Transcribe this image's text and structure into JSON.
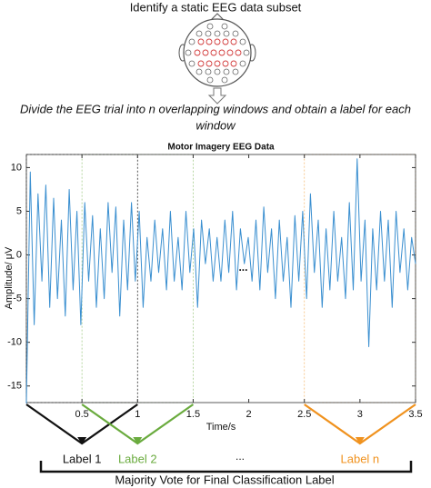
{
  "header": {
    "step1": "Identify a static EEG data subset",
    "step2": "Divide the EEG trial into n overlapping windows and obtain a label for each",
    "step2_cont": "window"
  },
  "chart_data": {
    "type": "line",
    "title": "Motor Imagery EEG Data",
    "xlabel": "Time/s",
    "ylabel": "Amplitude/ μV",
    "xlim": [
      0,
      3.5
    ],
    "ylim": [
      -16.9,
      11.5
    ],
    "xticks": [
      0.5,
      1,
      1.5,
      2,
      2.5,
      3,
      3.5
    ],
    "yticks": [
      -15,
      -10,
      -5,
      0,
      5,
      10
    ],
    "series": [
      {
        "color": "#3a8fd0",
        "x": [
          0,
          0.035,
          0.07,
          0.105,
          0.14,
          0.175,
          0.21,
          0.245,
          0.28,
          0.315,
          0.35,
          0.385,
          0.42,
          0.455,
          0.49,
          0.525,
          0.56,
          0.595,
          0.63,
          0.665,
          0.7,
          0.735,
          0.77,
          0.805,
          0.84,
          0.875,
          0.91,
          0.945,
          0.98,
          1.015,
          1.05,
          1.085,
          1.12,
          1.155,
          1.19,
          1.225,
          1.26,
          1.295,
          1.33,
          1.365,
          1.4,
          1.435,
          1.47,
          1.505,
          1.54,
          1.575,
          1.61,
          1.645,
          1.68,
          1.715,
          1.75,
          1.785,
          1.82,
          1.855,
          1.89,
          1.925,
          1.96,
          1.995,
          2.03,
          2.065,
          2.1,
          2.135,
          2.17,
          2.205,
          2.24,
          2.275,
          2.31,
          2.345,
          2.38,
          2.415,
          2.45,
          2.485,
          2.52,
          2.555,
          2.59,
          2.625,
          2.66,
          2.695,
          2.73,
          2.765,
          2.8,
          2.835,
          2.87,
          2.905,
          2.94,
          2.975,
          3.01,
          3.045,
          3.08,
          3.115,
          3.15,
          3.185,
          3.22,
          3.255,
          3.29,
          3.325,
          3.36,
          3.395,
          3.43,
          3.465,
          3.5
        ],
        "values": [
          -17,
          9.5,
          -8,
          7,
          -3,
          8,
          -6,
          6.5,
          -5,
          4,
          -7,
          7.5,
          -4,
          5,
          -8,
          6,
          -3,
          4.5,
          -6,
          3,
          -5,
          6,
          -2,
          5.5,
          -7,
          4,
          -4,
          6,
          -3,
          5,
          -6,
          2,
          -3,
          4,
          -2,
          3,
          -4,
          5,
          -3,
          2,
          -4,
          5,
          -2,
          3,
          -6,
          4,
          -1,
          3,
          -3,
          2,
          -3,
          4,
          -2,
          5,
          -4,
          3,
          -1,
          2,
          -3,
          4,
          -4,
          5.5,
          -2,
          3,
          -5,
          4,
          -3,
          2,
          -6,
          4.5,
          -3,
          5,
          -5,
          7,
          -2,
          4,
          -6,
          3,
          -4,
          5,
          -3,
          2,
          -5,
          6,
          -4,
          11,
          -3,
          4,
          -10.5,
          3,
          -4,
          5,
          -3,
          4,
          -6,
          5,
          -2,
          3,
          -4,
          2,
          -1
        ]
      }
    ],
    "annotations": [
      {
        "text": "...",
        "x": 1.95,
        "y": -1.5
      }
    ],
    "windows": [
      {
        "start": 0,
        "end": 1,
        "label": "Label 1",
        "color": "#111111"
      },
      {
        "start": 0.5,
        "end": 1.5,
        "label": "Label 2",
        "color": "#6aab3e"
      },
      {
        "start": 2.5,
        "end": 3.5,
        "label": "Label n",
        "color": "#f0921e"
      }
    ]
  },
  "footer": {
    "ellipsis": "...",
    "conclusion": "Majority Vote for Final Classification Label"
  }
}
